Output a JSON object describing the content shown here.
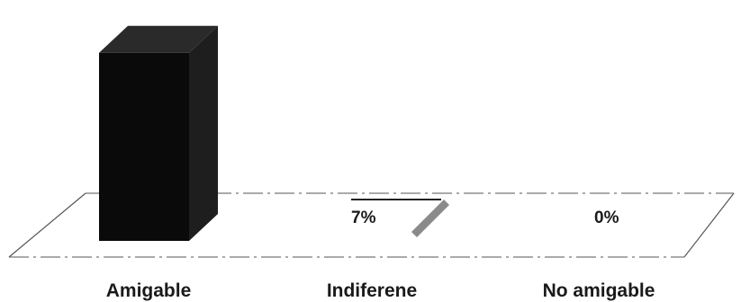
{
  "chart_data": {
    "type": "bar",
    "style": "3d-column",
    "categories": [
      "Amigable",
      "Indiferene",
      "No amigable"
    ],
    "values": [
      93,
      7,
      0
    ],
    "value_unit": "%",
    "data_labels": [
      "",
      "7%",
      "0%"
    ],
    "ylim": [
      0,
      100
    ],
    "grid": false,
    "legend": "none",
    "colors": {
      "bar_front": "#0a0a0a",
      "bar_side": "#1e1e1e",
      "bar_top": "#2a2a2a",
      "small_bar": "#8a8a8a",
      "floor_line": "#555555"
    }
  }
}
